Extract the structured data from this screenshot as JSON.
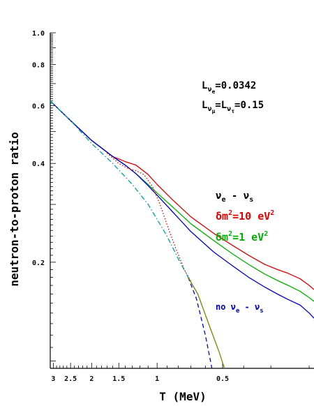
{
  "chart_data": {
    "type": "line",
    "xlabel": "T (MeV)",
    "ylabel": "neutron-to-proton ratio",
    "x_scale": "log, decreasing",
    "y_scale": "log",
    "xlim": [
      3.1,
      0.19
    ],
    "ylim": [
      0.095,
      1.0
    ],
    "x_ticks": [
      {
        "value": 3,
        "label": "3"
      },
      {
        "value": 2.5,
        "label": "2.5"
      },
      {
        "value": 2,
        "label": "2"
      },
      {
        "value": 1.5,
        "label": "1.5"
      },
      {
        "value": 1,
        "label": "1"
      },
      {
        "value": 0.5,
        "label": "0.5"
      }
    ],
    "y_ticks": [
      {
        "value": 1.0,
        "label": "1.0"
      },
      {
        "value": 0.8,
        "label": "0.8"
      },
      {
        "value": 0.6,
        "label": "0.6"
      },
      {
        "value": 0.4,
        "label": "0.4"
      },
      {
        "value": 0.2,
        "label": "0.2"
      }
    ],
    "annotations": {
      "lnue_main": "L",
      "lnue_sub": "ν",
      "lnue_subsub": "e",
      "lnue_val": "=0.0342",
      "lmu_main": "L",
      "lmu_sub": "ν",
      "lmu_subsub": "μ",
      "lmu_eq": "=L",
      "ltau_sub": "ν",
      "ltau_subsub": "τ",
      "ltau_val": "=0.15",
      "nue_nus_a": "ν",
      "nue_nus_a_sub": "e",
      "nue_nus_dash": " - ν",
      "nue_nus_b_sub": "s",
      "dm10_a": "δm",
      "dm10_exp": "2",
      "dm10_b": "=10 eV",
      "dm10_exp2": "2",
      "dm1_a": "δm",
      "dm1_exp": "2",
      "dm1_b": "=1 eV",
      "dm1_exp2": "2",
      "no_a": "no ν",
      "no_sub": "e",
      "no_dash": " - ν",
      "no_sub2": "s"
    },
    "colors": {
      "red": "#e00000",
      "green": "#00b000",
      "blue": "#0000d0",
      "olive": "#808000",
      "teal": "#00a0a0",
      "black": "#000000"
    },
    "series": [
      {
        "color": "red",
        "style": "solid",
        "x": [
          3.1,
          2.5,
          2.0,
          1.6,
          1.4,
          1.25,
          1.1,
          1.0,
          0.85,
          0.7,
          0.55,
          0.45,
          0.38,
          0.32,
          0.28,
          0.25,
          0.22,
          0.2,
          0.19
        ],
        "y": [
          0.62,
          0.54,
          0.47,
          0.42,
          0.405,
          0.395,
          0.37,
          0.345,
          0.31,
          0.275,
          0.245,
          0.225,
          0.21,
          0.197,
          0.19,
          0.185,
          0.178,
          0.17,
          0.165
        ]
      },
      {
        "color": "green",
        "style": "solid",
        "x": [
          3.1,
          2.5,
          2.0,
          1.6,
          1.4,
          1.25,
          1.1,
          1.0,
          0.85,
          0.7,
          0.55,
          0.45,
          0.38,
          0.32,
          0.28,
          0.25,
          0.22,
          0.2,
          0.19
        ],
        "y": [
          0.62,
          0.54,
          0.47,
          0.42,
          0.395,
          0.372,
          0.345,
          0.325,
          0.295,
          0.262,
          0.233,
          0.212,
          0.197,
          0.184,
          0.176,
          0.17,
          0.163,
          0.156,
          0.152
        ]
      },
      {
        "color": "blue",
        "style": "solid",
        "x": [
          3.1,
          2.5,
          2.0,
          1.6,
          1.4,
          1.25,
          1.1,
          1.0,
          0.85,
          0.7,
          0.55,
          0.45,
          0.38,
          0.32,
          0.28,
          0.25,
          0.22,
          0.2,
          0.19
        ],
        "y": [
          0.62,
          0.54,
          0.47,
          0.42,
          0.395,
          0.372,
          0.342,
          0.32,
          0.285,
          0.248,
          0.215,
          0.195,
          0.18,
          0.168,
          0.16,
          0.154,
          0.148,
          0.14,
          0.135
        ]
      },
      {
        "color": "red",
        "style": "dotted",
        "x": [
          1.7,
          1.5,
          1.35,
          1.25,
          1.15,
          1.05,
          0.97,
          0.9,
          0.82,
          0.75,
          0.7
        ],
        "y": [
          0.43,
          0.4,
          0.385,
          0.38,
          0.37,
          0.34,
          0.3,
          0.26,
          0.22,
          0.19,
          0.175
        ]
      },
      {
        "color": "teal",
        "style": "dashdot",
        "x": [
          3.1,
          2.5,
          2.0,
          1.6,
          1.3,
          1.1,
          1.0,
          0.9,
          0.8,
          0.72
        ],
        "y": [
          0.62,
          0.54,
          0.46,
          0.4,
          0.345,
          0.3,
          0.27,
          0.24,
          0.205,
          0.18
        ]
      },
      {
        "color": "blue",
        "style": "dashed",
        "x": [
          0.72,
          0.66,
          0.6,
          0.56
        ],
        "y": [
          0.18,
          0.155,
          0.12,
          0.095
        ]
      },
      {
        "color": "olive",
        "style": "solid",
        "x": [
          0.72,
          0.65,
          0.58,
          0.52,
          0.49
        ],
        "y": [
          0.18,
          0.16,
          0.13,
          0.107,
          0.095
        ]
      }
    ]
  }
}
